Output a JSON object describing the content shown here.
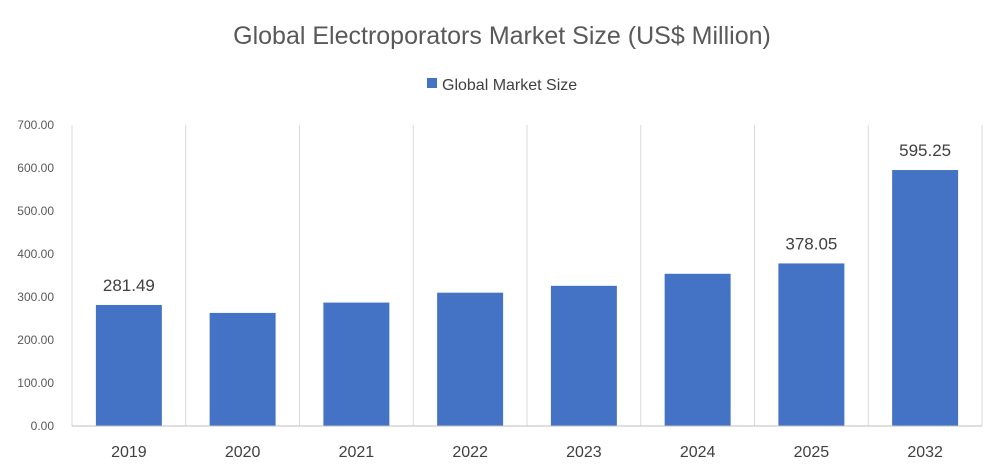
{
  "chart_data": {
    "type": "bar",
    "title": "Global Electroporators Market Size (US$ Million)",
    "legend": {
      "position": "top-center",
      "entries": [
        "Global Market Size"
      ]
    },
    "categories": [
      "2019",
      "2020",
      "2021",
      "2022",
      "2023",
      "2024",
      "2025",
      "2032"
    ],
    "series": [
      {
        "name": "Global Market Size",
        "color": "#4472c4",
        "values": [
          281.49,
          263,
          287,
          310,
          326,
          354,
          378.05,
          595.25
        ]
      }
    ],
    "data_labels": [
      {
        "index": 0,
        "text": "281.49"
      },
      {
        "index": 6,
        "text": "378.05"
      },
      {
        "index": 7,
        "text": "595.25"
      }
    ],
    "ylim": [
      0,
      700
    ],
    "yticks": [
      "0.00",
      "100.00",
      "200.00",
      "300.00",
      "400.00",
      "500.00",
      "600.00",
      "700.00"
    ],
    "ytick_values": [
      0,
      100,
      200,
      300,
      400,
      500,
      600,
      700
    ],
    "xlabel": "",
    "ylabel": "",
    "grid": "vertical"
  }
}
